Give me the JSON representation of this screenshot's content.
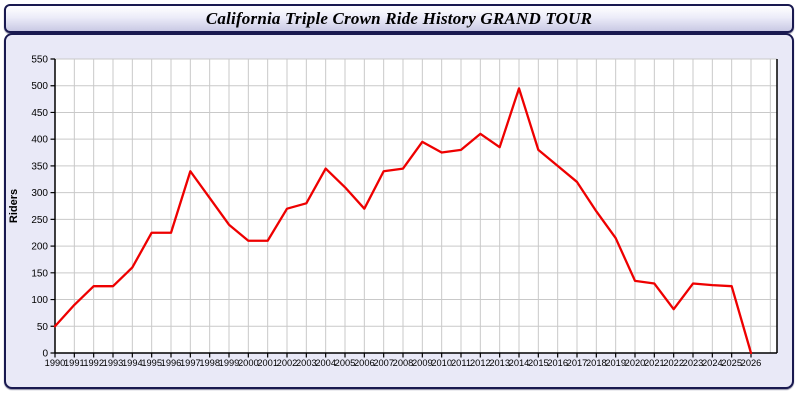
{
  "header": {
    "title": "California Triple Crown Ride History GRAND TOUR"
  },
  "chart_data": {
    "type": "line",
    "title": "California Triple Crown Ride History GRAND TOUR",
    "xlabel": "",
    "ylabel": "Riders",
    "x": [
      1990,
      1991,
      1992,
      1993,
      1994,
      1995,
      1996,
      1997,
      1998,
      1999,
      2000,
      2001,
      2002,
      2003,
      2004,
      2005,
      2006,
      2007,
      2008,
      2009,
      2010,
      2011,
      2012,
      2013,
      2014,
      2015,
      2016,
      2017,
      2018,
      2019,
      2020,
      2021,
      2022,
      2023,
      2024,
      2025,
      2026
    ],
    "series": [
      {
        "name": "Riders",
        "values": [
          50,
          90,
          125,
          125,
          160,
          225,
          225,
          340,
          290,
          240,
          210,
          210,
          270,
          280,
          345,
          310,
          270,
          340,
          345,
          395,
          375,
          380,
          410,
          385,
          495,
          380,
          350,
          320,
          265,
          215,
          135,
          130,
          82,
          130,
          127,
          125,
          0
        ]
      }
    ],
    "ylim": [
      0,
      550
    ],
    "ytick_step": 50,
    "grid": true,
    "legend": "none",
    "line_color": "#ee0000",
    "grid_color": "#c9c9c9",
    "axis_color": "#000000",
    "tick_label_color": "#000000",
    "plot_bg": "#ffffff",
    "panel_bg": "#e9e9f7"
  }
}
